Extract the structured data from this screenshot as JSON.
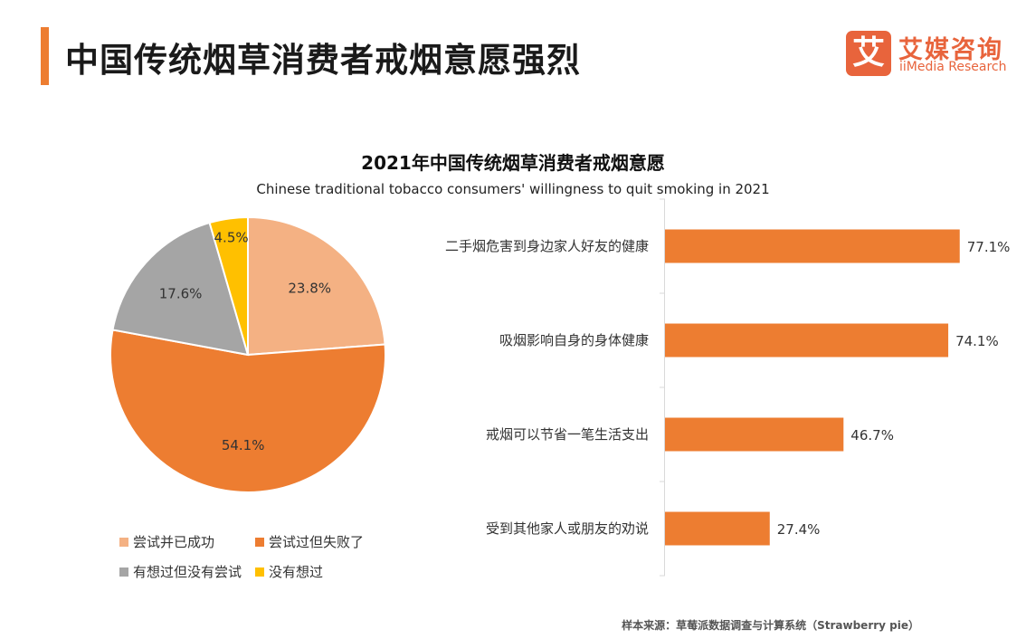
{
  "header": {
    "title": "中国传统烟草消费者戒烟意愿强烈",
    "accent_color": "#ed7d31"
  },
  "logo": {
    "mark": "艾",
    "name_cn": "艾媒咨询",
    "name_en": "iiMedia Research",
    "color": "#e8643c"
  },
  "chart_title": "2021年中国传统烟草消费者戒烟意愿",
  "chart_subtitle": "Chinese traditional tobacco consumers' willingness to quit smoking in 2021",
  "source": "样本来源：草莓派数据调查与计算系统（Strawberry pie）",
  "chart_data": [
    {
      "type": "pie",
      "slices": [
        {
          "label": "尝试并已成功",
          "value": 23.8,
          "display": "23.8%",
          "color": "#f4b183"
        },
        {
          "label": "尝试过但失败了",
          "value": 54.1,
          "display": "54.1%",
          "color": "#ed7d31"
        },
        {
          "label": "有想过但没有尝试",
          "value": 17.6,
          "display": "17.6%",
          "color": "#a5a5a5"
        },
        {
          "label": "没有想过",
          "value": 4.5,
          "display": "4.5%",
          "color": "#ffc000"
        }
      ],
      "legend_position": "bottom"
    },
    {
      "type": "bar",
      "orientation": "horizontal",
      "categories": [
        "二手烟危害到身边家人好友的健康",
        "吸烟影响自身的身体健康",
        "戒烟可以节省一笔生活支出",
        "受到其他家人或朋友的劝说"
      ],
      "values": [
        77.1,
        74.1,
        46.7,
        27.4
      ],
      "data_labels": [
        "77.1%",
        "74.1%",
        "46.7%",
        "27.4%"
      ],
      "color": "#ed7d31",
      "xlim": [
        0,
        100
      ]
    }
  ]
}
